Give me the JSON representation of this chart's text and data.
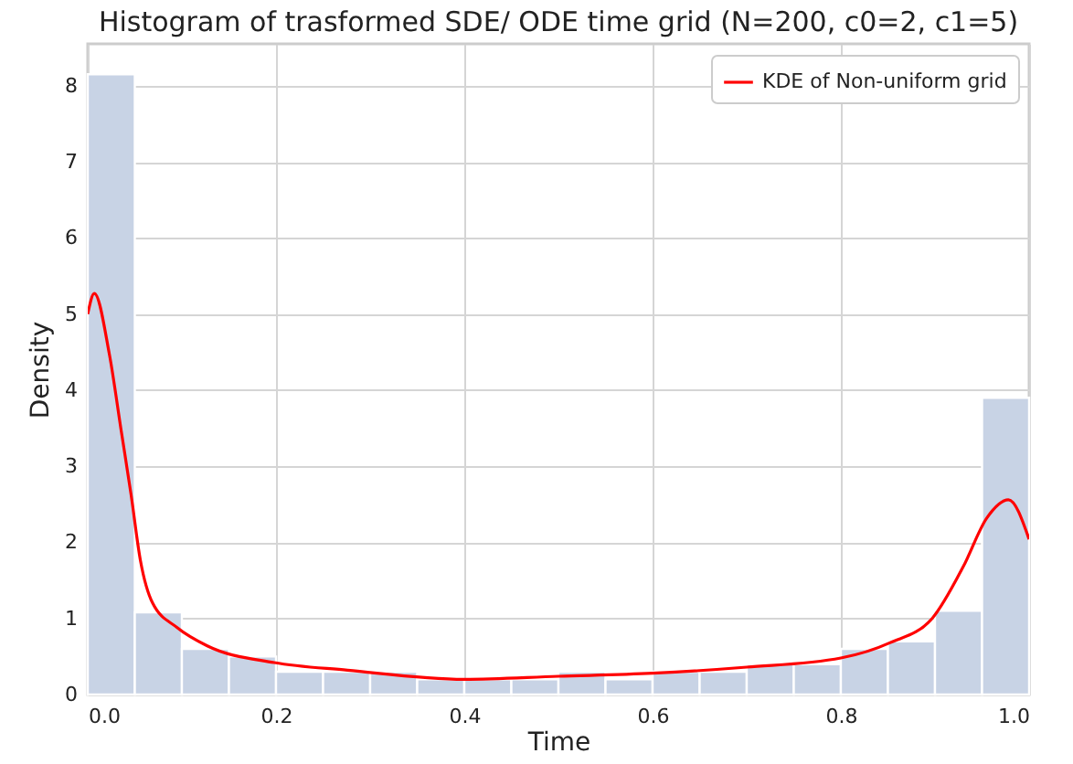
{
  "chart_data": {
    "type": "histogram",
    "title": "Histogram of trasformed SDE/ ODE time grid (N=200, c0=2, c1=5)",
    "xlabel": "Time",
    "ylabel": "Density",
    "series": [
      {
        "type": "histogram",
        "color": "#c8d3e5",
        "bins": [
          0,
          0.05,
          0.1,
          0.15,
          0.2,
          0.25,
          0.3,
          0.35,
          0.4,
          0.45,
          0.5,
          0.55,
          0.6,
          0.65,
          0.7,
          0.75,
          0.8,
          0.85,
          0.9,
          0.95,
          1.0
        ],
        "values": [
          8.15,
          1.08,
          0.6,
          0.5,
          0.3,
          0.3,
          0.3,
          0.2,
          0.2,
          0.2,
          0.3,
          0.2,
          0.3,
          0.3,
          0.4,
          0.4,
          0.6,
          0.7,
          1.1,
          3.9
        ]
      },
      {
        "type": "line",
        "name": "KDE of Non-uniform grid",
        "color": "#ff0000",
        "x": [
          0,
          0.007,
          0.023,
          0.036,
          0.046,
          0.056,
          0.069,
          0.095,
          0.127,
          0.198,
          0.276,
          0.4,
          0.5,
          0.6,
          0.7,
          0.8,
          0.852,
          0.897,
          0.93,
          0.955,
          0.978,
          1.0
        ],
        "values": [
          5.0,
          5.27,
          4.47,
          3.43,
          2.63,
          1.76,
          1.2,
          0.88,
          0.64,
          0.42,
          0.32,
          0.2,
          0.24,
          0.28,
          0.36,
          0.48,
          0.68,
          1.0,
          1.68,
          2.32,
          2.56,
          2.04
        ]
      }
    ],
    "xlim": [
      0,
      1
    ],
    "xticks": [
      {
        "value": 0,
        "label": "0.0"
      },
      0.2,
      0.4,
      0.6,
      0.8,
      {
        "value": 1,
        "label": "1.0"
      }
    ],
    "ylim": [
      0,
      8.55
    ],
    "yticks": [
      0,
      1,
      2,
      3,
      4,
      5,
      6,
      7,
      8
    ],
    "grid": true,
    "legend": "top right"
  }
}
